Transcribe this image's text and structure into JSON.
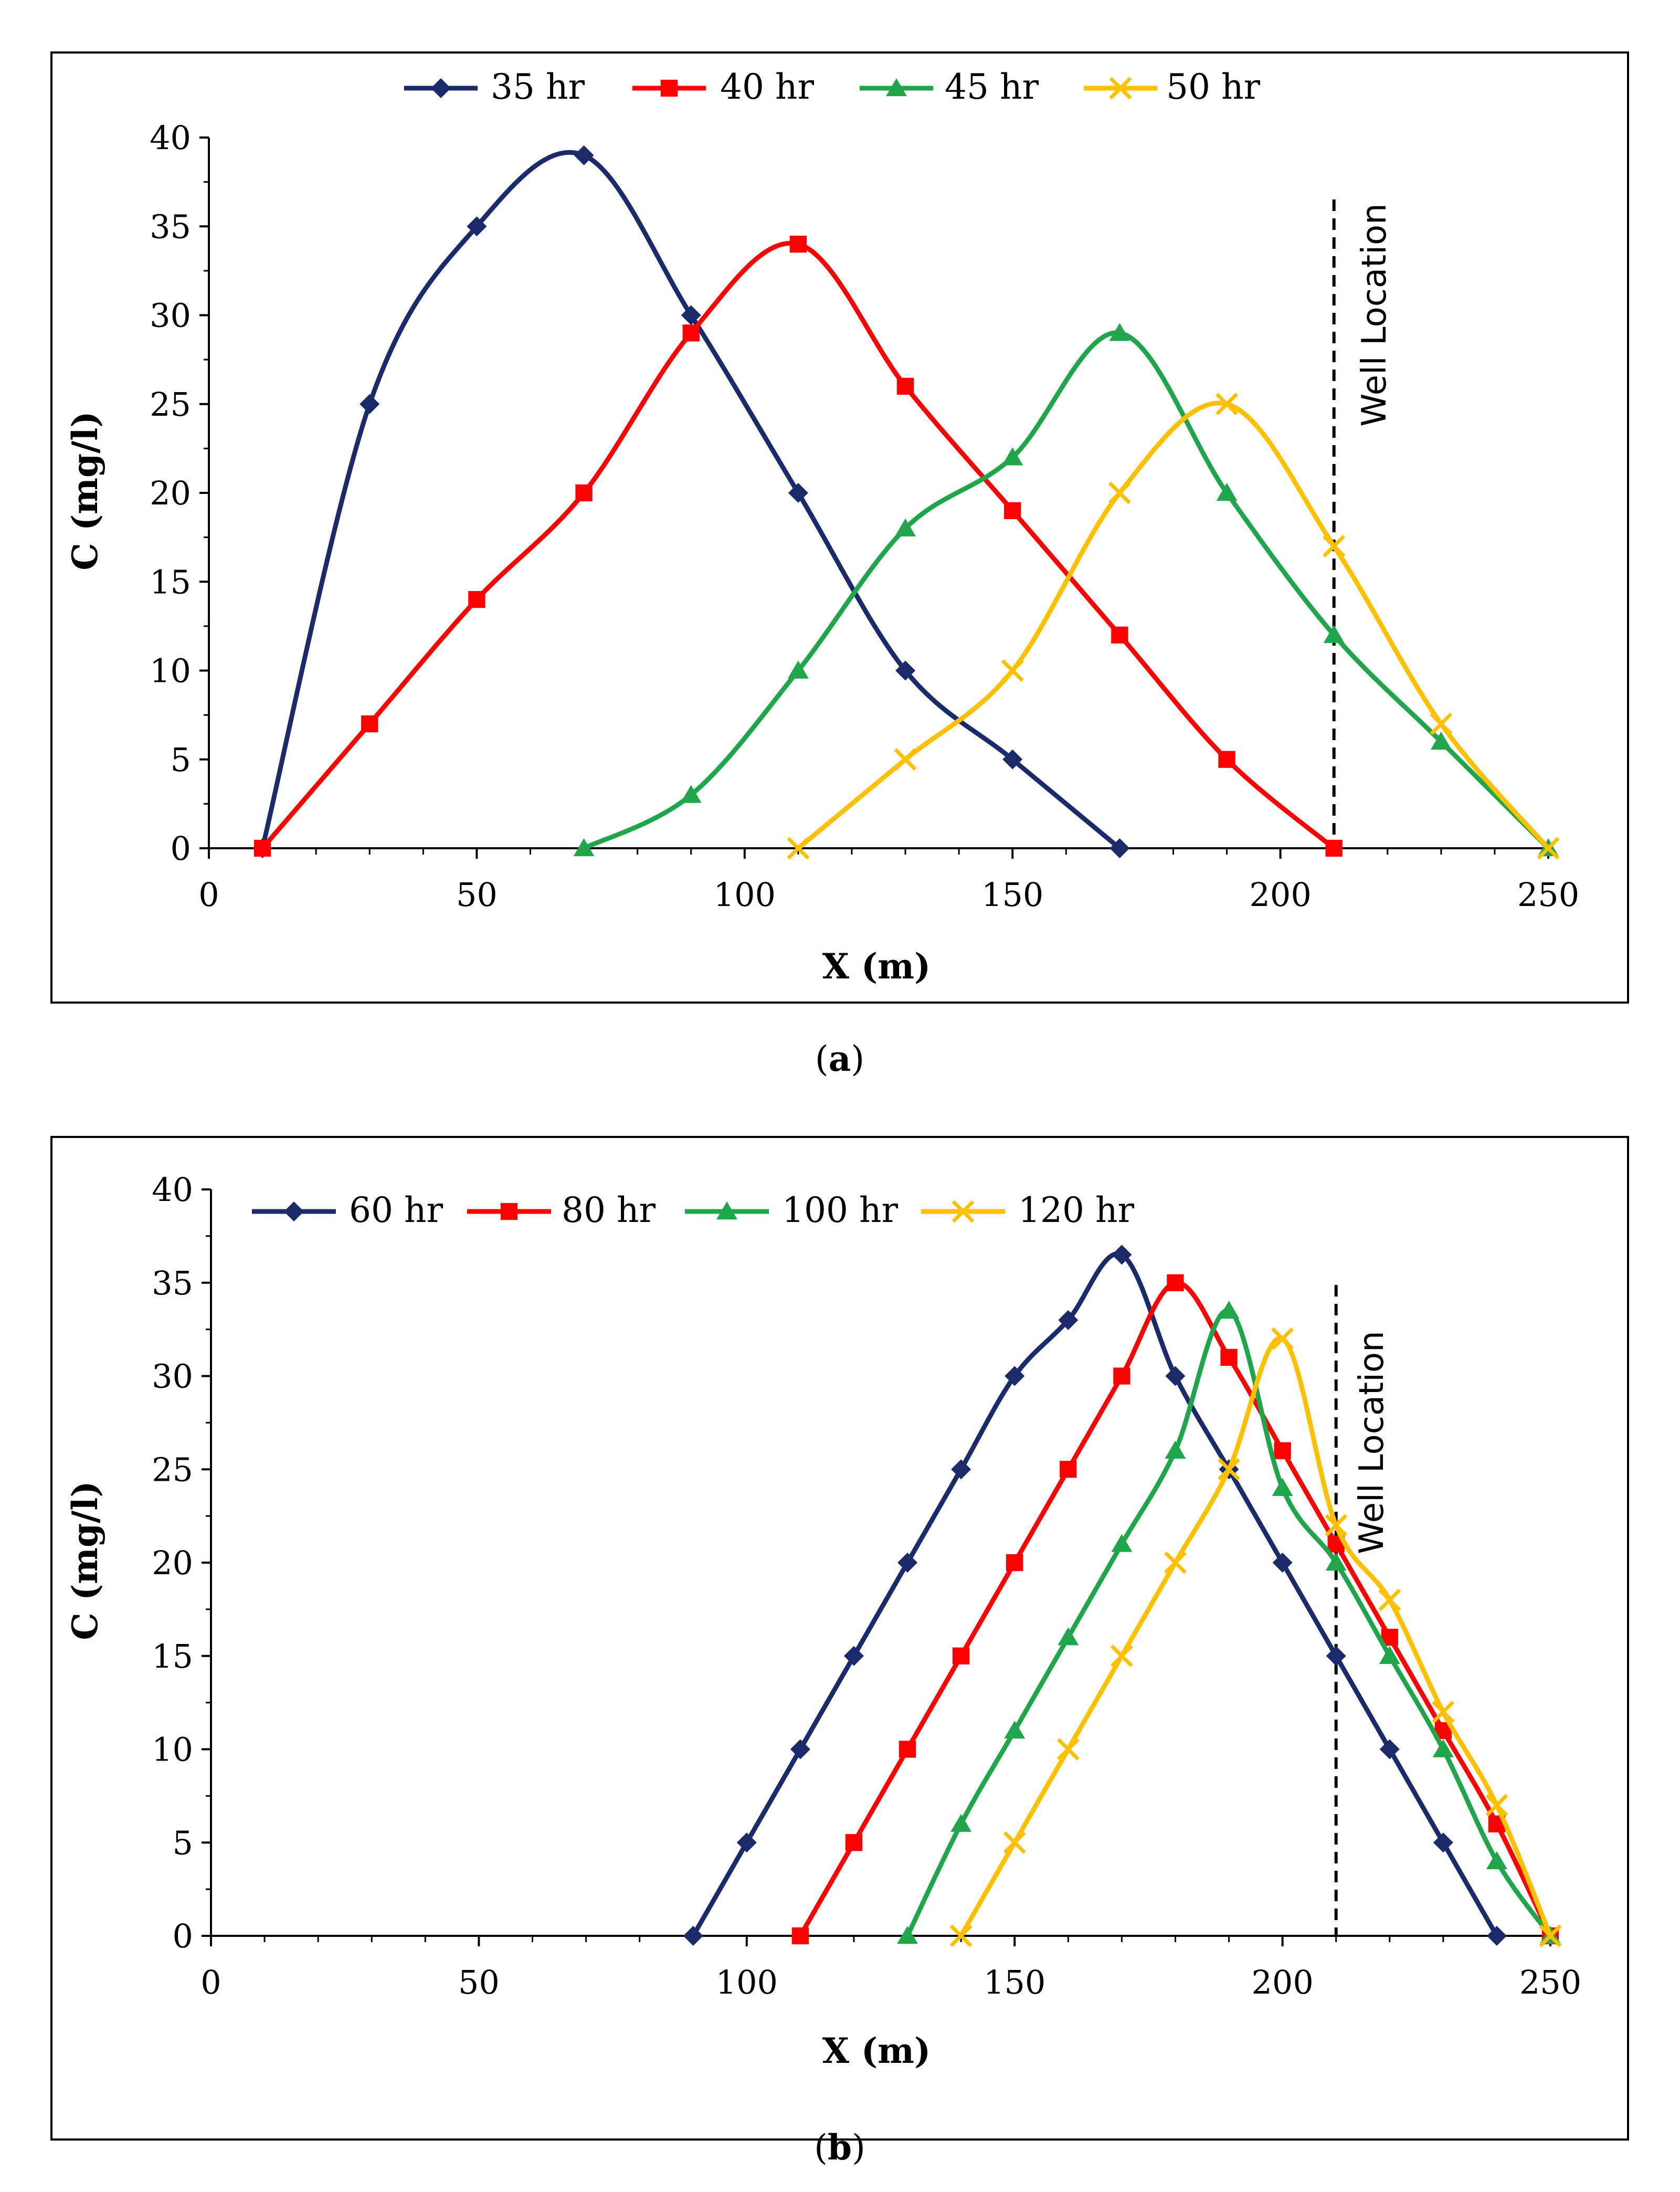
{
  "chart_data": [
    {
      "panel": "(a)",
      "caption_letter": "a",
      "type": "line",
      "xlabel": "X (m)",
      "ylabel": "C (mg/l)",
      "xlim": [
        0,
        250
      ],
      "ylim": [
        0,
        40
      ],
      "x_ticks": [
        0,
        50,
        100,
        150,
        200,
        250
      ],
      "y_ticks": [
        0,
        5,
        10,
        15,
        20,
        25,
        30,
        35,
        40
      ],
      "legend_position": "top",
      "grid": false,
      "annotation": {
        "text": "Well Location",
        "x": 210
      },
      "series": [
        {
          "name": "35 hr",
          "color": "#1b2a6b",
          "marker": "diamond",
          "points": [
            [
              10,
              0
            ],
            [
              30,
              25
            ],
            [
              50,
              35
            ],
            [
              70,
              39
            ],
            [
              90,
              30
            ],
            [
              110,
              20
            ],
            [
              130,
              10
            ],
            [
              150,
              5
            ],
            [
              170,
              0
            ]
          ]
        },
        {
          "name": "40 hr",
          "color": "#ff0000",
          "marker": "square",
          "points": [
            [
              10,
              0
            ],
            [
              30,
              7
            ],
            [
              50,
              14
            ],
            [
              70,
              20
            ],
            [
              90,
              29
            ],
            [
              110,
              34
            ],
            [
              130,
              26
            ],
            [
              150,
              19
            ],
            [
              170,
              12
            ],
            [
              190,
              5
            ],
            [
              210,
              0
            ]
          ]
        },
        {
          "name": "45 hr",
          "color": "#1fa64a",
          "marker": "triangle",
          "points": [
            [
              70,
              0
            ],
            [
              90,
              3
            ],
            [
              110,
              10
            ],
            [
              130,
              18
            ],
            [
              150,
              22
            ],
            [
              170,
              29
            ],
            [
              190,
              20
            ],
            [
              210,
              12
            ],
            [
              230,
              6
            ],
            [
              250,
              0
            ]
          ]
        },
        {
          "name": "50  hr",
          "color": "#ffc000",
          "marker": "x",
          "points": [
            [
              110,
              0
            ],
            [
              130,
              5
            ],
            [
              150,
              10
            ],
            [
              170,
              20
            ],
            [
              190,
              25
            ],
            [
              210,
              17
            ],
            [
              230,
              7
            ],
            [
              250,
              0
            ]
          ]
        }
      ]
    },
    {
      "panel": "(b)",
      "caption_letter": "b",
      "type": "line",
      "xlabel": "X (m)",
      "ylabel": "C (mg/l)",
      "xlim": [
        0,
        250
      ],
      "ylim": [
        0,
        40
      ],
      "x_ticks": [
        0,
        50,
        100,
        150,
        200,
        250
      ],
      "y_ticks": [
        0,
        5,
        10,
        15,
        20,
        25,
        30,
        35,
        40
      ],
      "legend_position": "top-left",
      "grid": false,
      "annotation": {
        "text": "Well Location",
        "x": 210
      },
      "series": [
        {
          "name": "60 hr",
          "color": "#1b2a6b",
          "marker": "diamond",
          "points": [
            [
              90,
              0
            ],
            [
              100,
              5
            ],
            [
              110,
              10
            ],
            [
              120,
              15
            ],
            [
              130,
              20
            ],
            [
              140,
              25
            ],
            [
              150,
              30
            ],
            [
              160,
              33
            ],
            [
              170,
              36.5
            ],
            [
              180,
              30
            ],
            [
              190,
              25
            ],
            [
              200,
              20
            ],
            [
              210,
              15
            ],
            [
              220,
              10
            ],
            [
              230,
              5
            ],
            [
              240,
              0
            ]
          ]
        },
        {
          "name": "80 hr",
          "color": "#ff0000",
          "marker": "square",
          "points": [
            [
              110,
              0
            ],
            [
              120,
              5
            ],
            [
              130,
              10
            ],
            [
              140,
              15
            ],
            [
              150,
              20
            ],
            [
              160,
              25
            ],
            [
              170,
              30
            ],
            [
              180,
              35
            ],
            [
              190,
              31
            ],
            [
              200,
              26
            ],
            [
              210,
              21
            ],
            [
              220,
              16
            ],
            [
              230,
              11
            ],
            [
              240,
              6
            ],
            [
              250,
              0
            ]
          ]
        },
        {
          "name": "100 hr",
          "color": "#1fa64a",
          "marker": "triangle",
          "points": [
            [
              130,
              0
            ],
            [
              140,
              6
            ],
            [
              150,
              11
            ],
            [
              160,
              16
            ],
            [
              170,
              21
            ],
            [
              180,
              26
            ],
            [
              190,
              33.5
            ],
            [
              200,
              24
            ],
            [
              210,
              20
            ],
            [
              220,
              15
            ],
            [
              230,
              10
            ],
            [
              240,
              4
            ],
            [
              250,
              0
            ]
          ]
        },
        {
          "name": "120 hr",
          "color": "#ffc000",
          "marker": "x",
          "points": [
            [
              140,
              0
            ],
            [
              150,
              5
            ],
            [
              160,
              10
            ],
            [
              170,
              15
            ],
            [
              180,
              20
            ],
            [
              190,
              25
            ],
            [
              200,
              32
            ],
            [
              210,
              22
            ],
            [
              220,
              18
            ],
            [
              230,
              12
            ],
            [
              240,
              7
            ],
            [
              250,
              0
            ]
          ]
        }
      ]
    }
  ]
}
